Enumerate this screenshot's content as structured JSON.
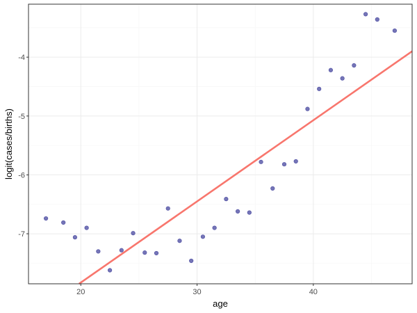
{
  "chart_data": {
    "type": "scatter",
    "xlabel": "age",
    "ylabel": "logit(cases/births)",
    "xlim": [
      15.5,
      48.5
    ],
    "ylim": [
      -7.85,
      -3.1
    ],
    "x_ticks": [
      20,
      30,
      40
    ],
    "y_ticks": [
      -7,
      -6,
      -5,
      -4
    ],
    "x_tick_labels": [
      "20",
      "30",
      "40"
    ],
    "y_tick_labels": [
      "-7",
      "-6",
      "-5",
      "-4"
    ],
    "grid": true,
    "point_color": "#3b3b99",
    "line_color": "#f8766d",
    "points": [
      {
        "x": 17,
        "y": -6.74
      },
      {
        "x": 18.5,
        "y": -6.81
      },
      {
        "x": 19.5,
        "y": -7.06
      },
      {
        "x": 20.5,
        "y": -6.9
      },
      {
        "x": 21.5,
        "y": -7.3
      },
      {
        "x": 22.5,
        "y": -7.62
      },
      {
        "x": 23.5,
        "y": -7.28
      },
      {
        "x": 24.5,
        "y": -6.99
      },
      {
        "x": 25.5,
        "y": -7.32
      },
      {
        "x": 26.5,
        "y": -7.33
      },
      {
        "x": 27.5,
        "y": -6.57
      },
      {
        "x": 28.5,
        "y": -7.12
      },
      {
        "x": 29.5,
        "y": -7.46
      },
      {
        "x": 30.5,
        "y": -7.05
      },
      {
        "x": 31.5,
        "y": -6.9
      },
      {
        "x": 32.5,
        "y": -6.41
      },
      {
        "x": 33.5,
        "y": -6.62
      },
      {
        "x": 34.5,
        "y": -6.64
      },
      {
        "x": 35.5,
        "y": -5.78
      },
      {
        "x": 36.5,
        "y": -6.23
      },
      {
        "x": 37.5,
        "y": -5.82
      },
      {
        "x": 38.5,
        "y": -5.77
      },
      {
        "x": 39.5,
        "y": -4.88
      },
      {
        "x": 40.5,
        "y": -4.54
      },
      {
        "x": 41.5,
        "y": -4.22
      },
      {
        "x": 42.5,
        "y": -4.36
      },
      {
        "x": 43.5,
        "y": -4.14
      },
      {
        "x": 44.5,
        "y": -3.27
      },
      {
        "x": 45.5,
        "y": -3.36
      },
      {
        "x": 47,
        "y": -3.55
      }
    ],
    "fit_line": {
      "x": [
        19.85,
        48.5
      ],
      "y": [
        -7.85,
        -3.9
      ]
    }
  }
}
